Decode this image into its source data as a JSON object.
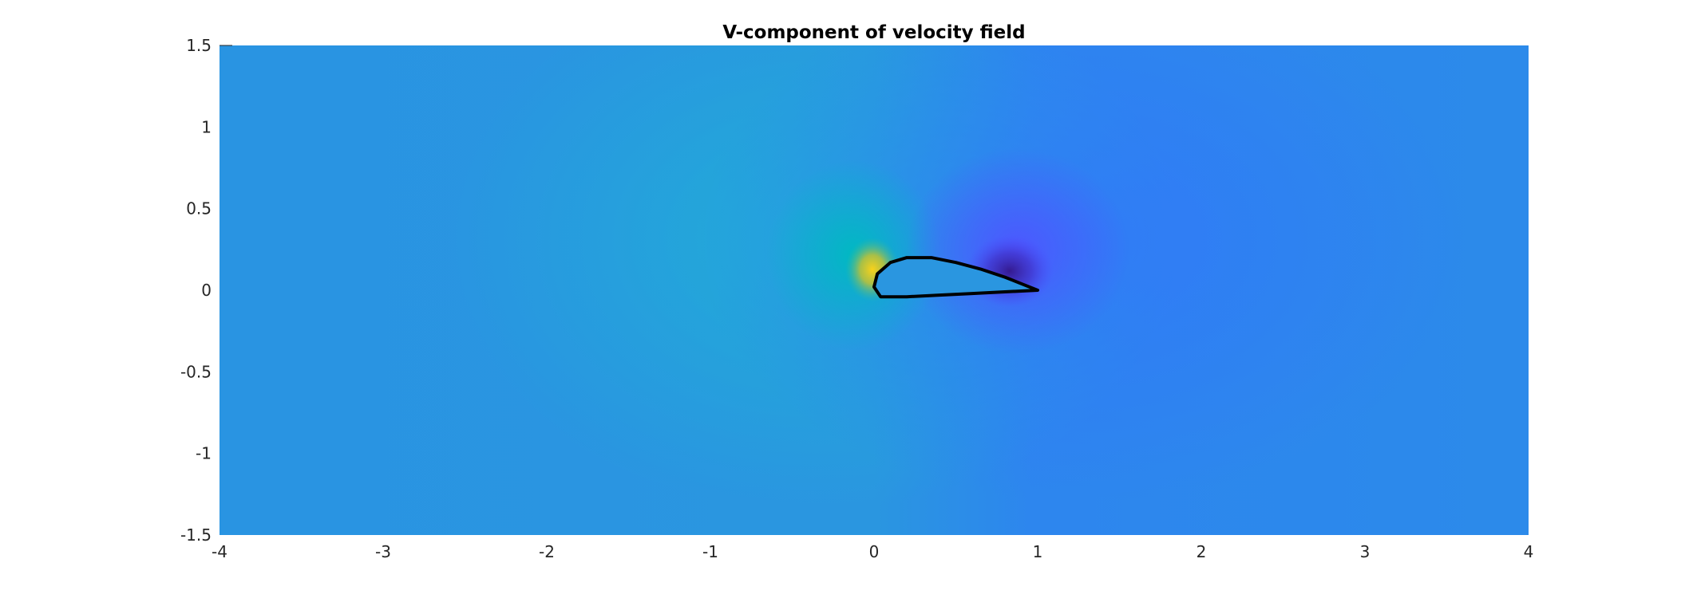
{
  "chart_data": {
    "type": "heatmap",
    "title": "V-component of velocity field",
    "xlabel": "",
    "ylabel": "",
    "xlim": [
      -4,
      4
    ],
    "ylim": [
      -1.5,
      1.5
    ],
    "x_ticks": [
      -4,
      -3,
      -2,
      -1,
      0,
      1,
      2,
      3,
      4
    ],
    "y_ticks": [
      1.5,
      1,
      0.5,
      0,
      -0.5,
      -1,
      -1.5
    ],
    "x_tick_labels": [
      "-4",
      "-3",
      "-2",
      "-1",
      "0",
      "1",
      "2",
      "3",
      "4"
    ],
    "y_tick_labels": [
      "1.5",
      "1",
      "0.5",
      "0",
      "-0.5",
      "-1",
      "-1.5"
    ],
    "colormap": "parula",
    "colors": {
      "background_field": "#2b92e4",
      "upwash_region": "#1fa8dc",
      "upwash_core": "#00b7c5",
      "peak_high": "#f9d21a",
      "downwash_region": "#2f80f5",
      "downwash_core": "#4a5cff",
      "peak_low": "#3a1fa0",
      "airfoil_outline": "#000000"
    },
    "features": [
      {
        "name": "upwash",
        "x": -0.1,
        "y": 0.2,
        "level": "high"
      },
      {
        "name": "downwash",
        "x": 1.2,
        "y": 0.25,
        "level": "low"
      }
    ],
    "airfoil": {
      "upper": [
        [
          0.0,
          0.02
        ],
        [
          0.02,
          0.1
        ],
        [
          0.1,
          0.17
        ],
        [
          0.2,
          0.2
        ],
        [
          0.35,
          0.2
        ],
        [
          0.5,
          0.17
        ],
        [
          0.65,
          0.13
        ],
        [
          0.8,
          0.08
        ],
        [
          0.9,
          0.04
        ],
        [
          1.0,
          0.0
        ]
      ],
      "lower": [
        [
          1.0,
          0.0
        ],
        [
          0.8,
          -0.01
        ],
        [
          0.6,
          -0.02
        ],
        [
          0.4,
          -0.03
        ],
        [
          0.2,
          -0.04
        ],
        [
          0.1,
          -0.04
        ],
        [
          0.04,
          -0.04
        ],
        [
          0.0,
          0.02
        ]
      ]
    }
  }
}
